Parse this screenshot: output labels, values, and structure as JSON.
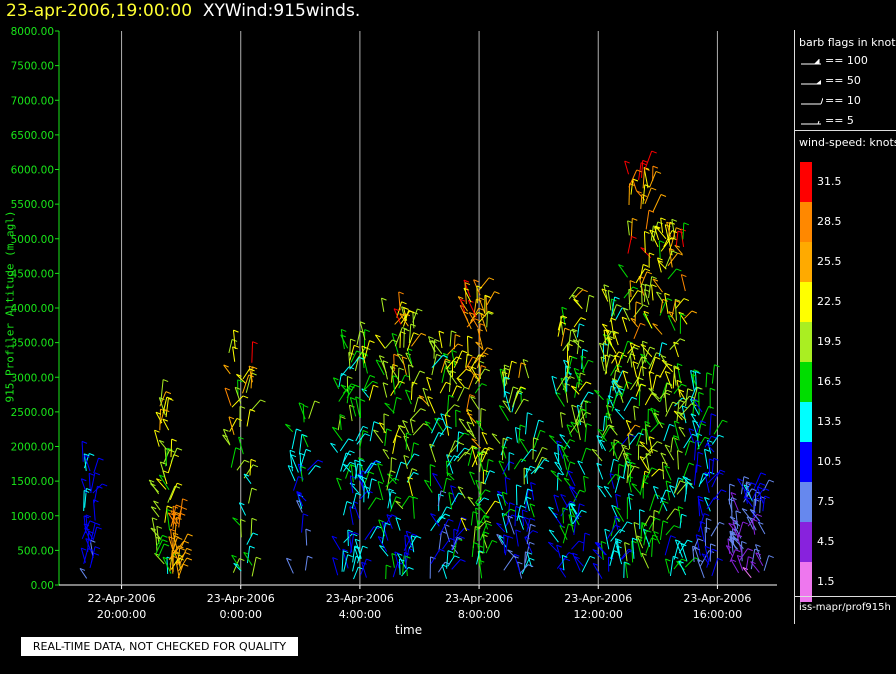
{
  "title": {
    "timestamp": "23-apr-2006,19:00:00",
    "product": "XYWind:915winds."
  },
  "chart_data": {
    "type": "scatter",
    "title": "23-apr-2006,19:00:00 XYWind:915winds.",
    "xlabel": "time",
    "ylabel": "915 Profiler Altitude (m agl)",
    "ylim": [
      0,
      8000
    ],
    "yticks": [
      "0.00",
      "500.00",
      "1000.00",
      "1500.00",
      "2000.00",
      "2500.00",
      "3000.00",
      "3500.00",
      "4000.00",
      "4500.00",
      "5000.00",
      "5500.00",
      "6000.00",
      "6500.00",
      "7000.00",
      "7500.00",
      "8000.00"
    ],
    "xlim_hours": [
      -0.6,
      23.5
    ],
    "xticks": [
      {
        "hour": 1.5,
        "date": "22-Apr-2006",
        "time": "20:00:00"
      },
      {
        "hour": 5.5,
        "date": "23-Apr-2006",
        "time": "0:00:00"
      },
      {
        "hour": 9.5,
        "date": "23-Apr-2006",
        "time": "4:00:00"
      },
      {
        "hour": 13.5,
        "date": "23-Apr-2006",
        "time": "8:00:00"
      },
      {
        "hour": 17.5,
        "date": "23-Apr-2006",
        "time": "12:00:00"
      },
      {
        "hour": 21.5,
        "date": "23-Apr-2006",
        "time": "16:00:00"
      }
    ],
    "grid": "vertical",
    "colorscale": {
      "title": "wind-speed: knots",
      "levels": [
        "31.5",
        "28.5",
        "25.5",
        "22.5",
        "19.5",
        "16.5",
        "13.5",
        "10.5",
        "7.5",
        "4.5",
        "1.5"
      ],
      "colors": [
        "#ff0000",
        "#ff8800",
        "#ffaa00",
        "#ffff00",
        "#aaee22",
        "#00dd00",
        "#00ffff",
        "#0000ff",
        "#6688ee",
        "#8822dd",
        "#ee77ee"
      ]
    },
    "clusters": [
      {
        "t": 0.4,
        "top": 1900,
        "w": 0.45,
        "spd": [
          7,
          14
        ],
        "n": 28
      },
      {
        "t": 2.9,
        "top": 2700,
        "w": 0.55,
        "spd": [
          14,
          25
        ],
        "n": 40
      },
      {
        "t": 3.3,
        "top": 1000,
        "w": 0.4,
        "spd": [
          22,
          30
        ],
        "n": 30
      },
      {
        "t": 5.5,
        "top": 3800,
        "w": 0.9,
        "spd": [
          10,
          31
        ],
        "n": 40
      },
      {
        "t": 7.5,
        "top": 2500,
        "w": 0.6,
        "spd": [
          6,
          18
        ],
        "n": 25
      },
      {
        "t": 9.3,
        "top": 3600,
        "w": 1.1,
        "spd": [
          8,
          22
        ],
        "n": 90
      },
      {
        "t": 10.8,
        "top": 4000,
        "w": 1.1,
        "spd": [
          9,
          28
        ],
        "n": 100
      },
      {
        "t": 12.3,
        "top": 3500,
        "w": 1.0,
        "spd": [
          5,
          26
        ],
        "n": 80
      },
      {
        "t": 13.4,
        "top": 4300,
        "w": 0.8,
        "spd": [
          12,
          31
        ],
        "n": 90
      },
      {
        "t": 14.8,
        "top": 3000,
        "w": 1.2,
        "spd": [
          6,
          22
        ],
        "n": 80
      },
      {
        "t": 16.6,
        "top": 4200,
        "w": 1.0,
        "spd": [
          8,
          24
        ],
        "n": 100
      },
      {
        "t": 18.0,
        "top": 4200,
        "w": 0.8,
        "spd": [
          8,
          24
        ],
        "n": 90
      },
      {
        "t": 18.9,
        "top": 6100,
        "w": 0.9,
        "spd": [
          12,
          31
        ],
        "n": 120
      },
      {
        "t": 20.0,
        "top": 5200,
        "w": 1.0,
        "spd": [
          10,
          28
        ],
        "n": 110
      },
      {
        "t": 21.0,
        "top": 3000,
        "w": 0.8,
        "spd": [
          6,
          18
        ],
        "n": 60
      },
      {
        "t": 22.5,
        "top": 1400,
        "w": 1.2,
        "spd": [
          2,
          12
        ],
        "n": 60
      }
    ]
  },
  "legend": {
    "barb_title": "barb flags in knots",
    "barbs": [
      {
        "icon": "barb-100-icon",
        "label": "== 100"
      },
      {
        "icon": "barb-50-icon",
        "label": "== 50"
      },
      {
        "icon": "barb-10-icon",
        "label": "== 10"
      },
      {
        "icon": "barb-5-icon",
        "label": "== 5"
      }
    ],
    "speed_title": "wind-speed: knots",
    "source": "iss-mapr/prof915h"
  },
  "quality_notice": "REAL-TIME DATA, NOT CHECKED FOR QUALITY"
}
